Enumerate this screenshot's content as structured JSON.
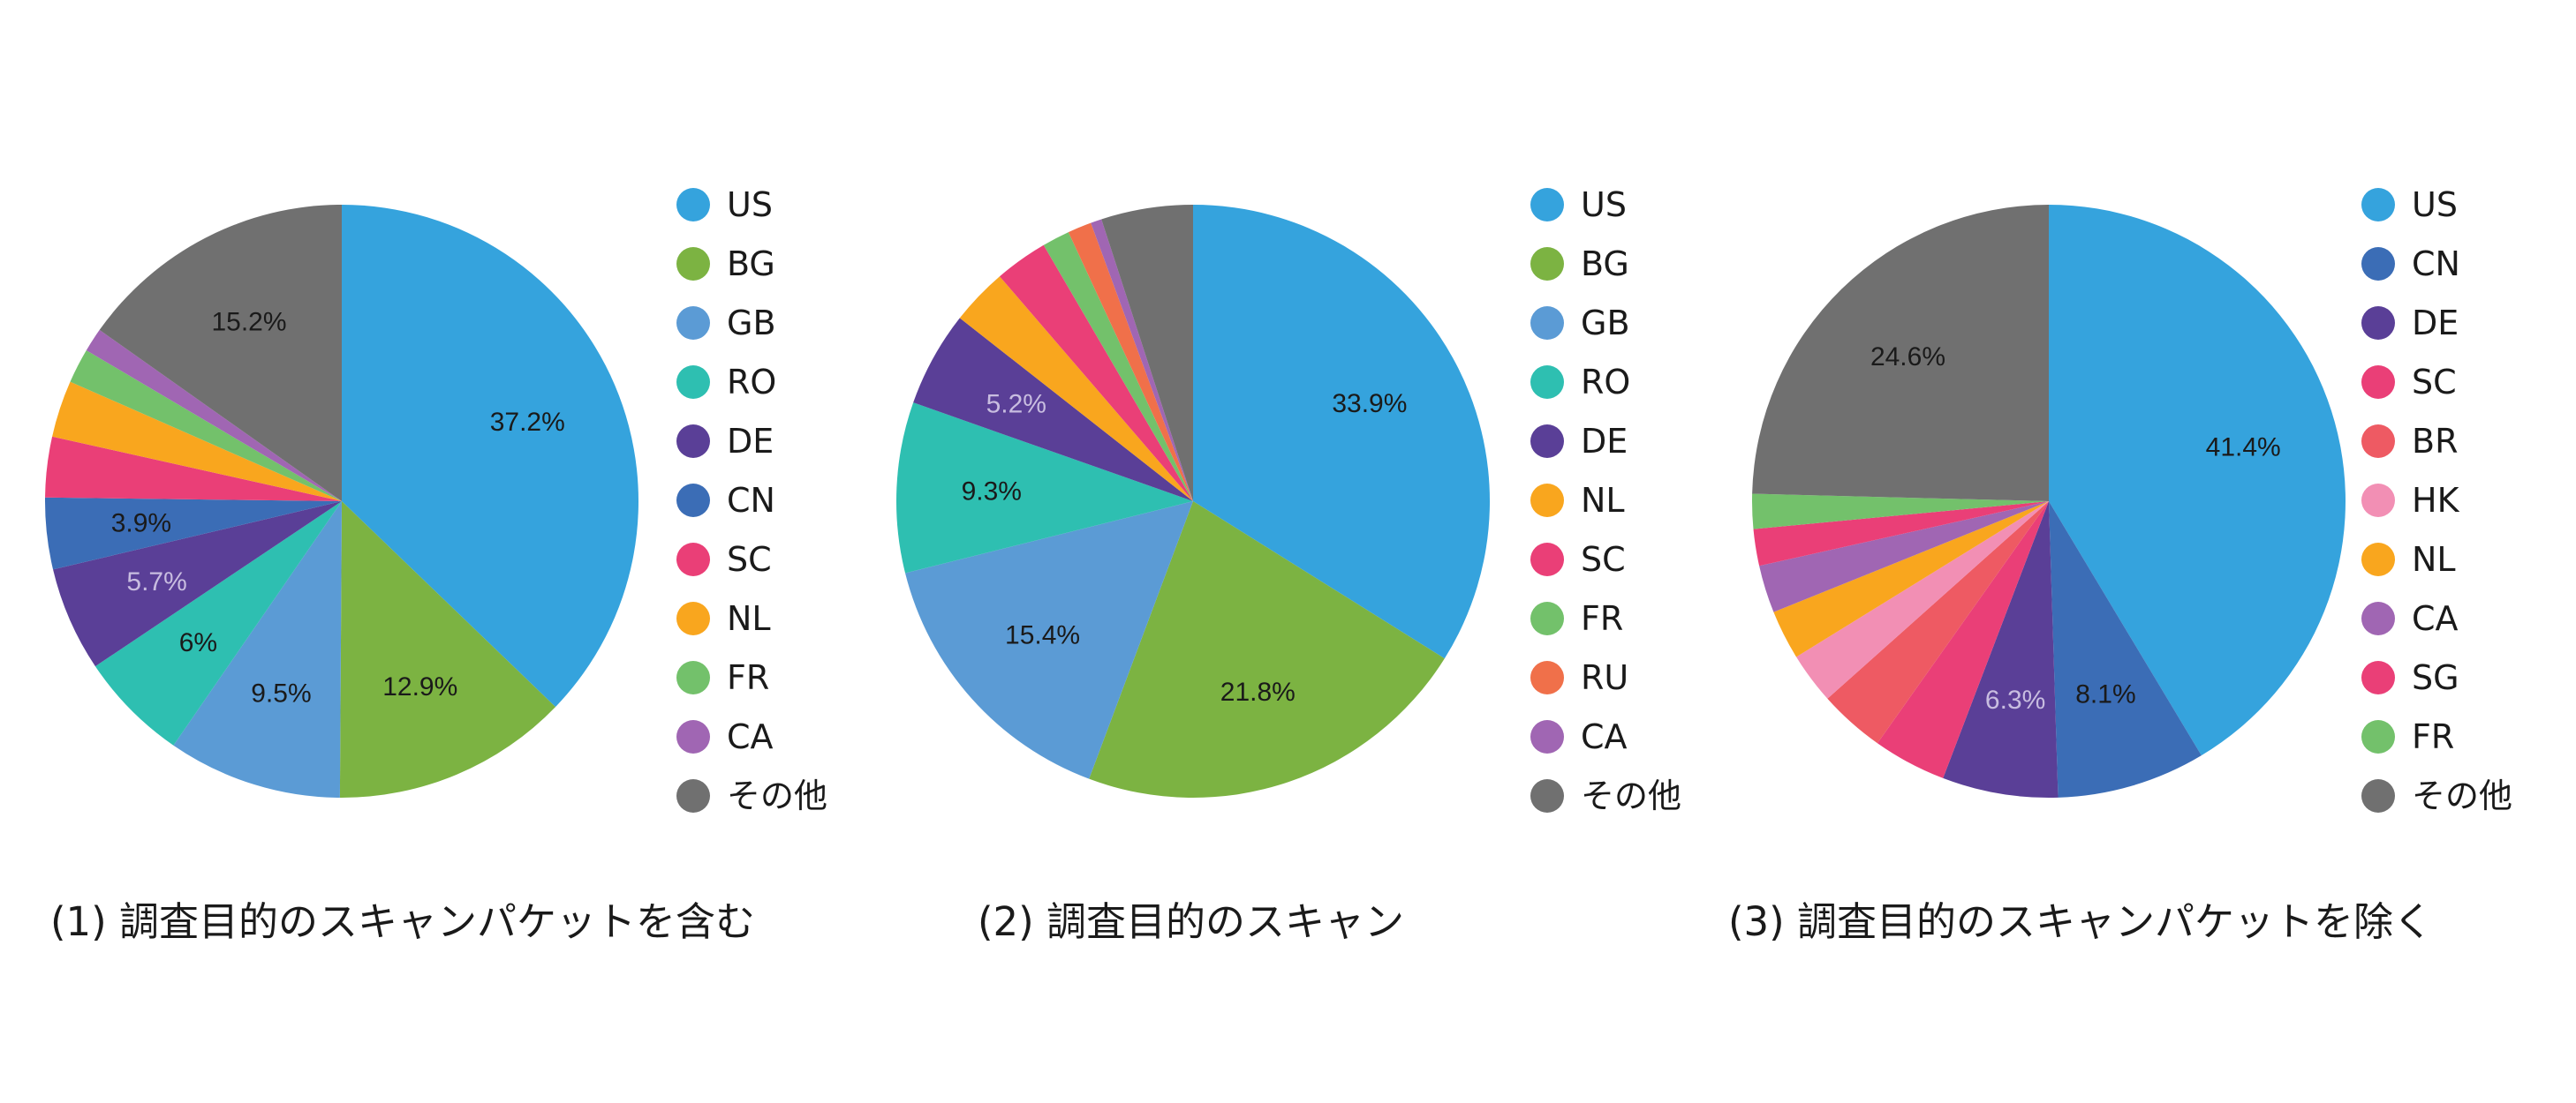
{
  "chart_data": [
    {
      "type": "pie",
      "caption": "(1) 調査目的のスキャンパケットを含む",
      "slices": [
        {
          "label": "US",
          "value": 37.2,
          "color": "#35a3dd",
          "data_label": "37.2%",
          "label_color": "#1a1a1a"
        },
        {
          "label": "BG",
          "value": 12.9,
          "color": "#7cb342",
          "data_label": "12.9%",
          "label_color": "#1a1a1a"
        },
        {
          "label": "GB",
          "value": 9.5,
          "color": "#5b9bd5",
          "data_label": "9.5%",
          "label_color": "#1a1a1a"
        },
        {
          "label": "RO",
          "value": 6.0,
          "color": "#2ebfb1",
          "data_label": "6%",
          "label_color": "#1a1a1a"
        },
        {
          "label": "DE",
          "value": 5.7,
          "color": "#5a3f97",
          "data_label": "5.7%",
          "label_color": "#c8bde0"
        },
        {
          "label": "CN",
          "value": 3.9,
          "color": "#3b6db6",
          "data_label": "3.9%",
          "label_color": "#1a1a1a"
        },
        {
          "label": "SC",
          "value": 3.3,
          "color": "#ea3f77",
          "data_label": "",
          "label_color": "#1a1a1a"
        },
        {
          "label": "NL",
          "value": 3.1,
          "color": "#f9a61e",
          "data_label": "",
          "label_color": "#1a1a1a"
        },
        {
          "label": "FR",
          "value": 1.9,
          "color": "#73c16b",
          "data_label": "",
          "label_color": "#1a1a1a"
        },
        {
          "label": "CA",
          "value": 1.3,
          "color": "#a066b3",
          "data_label": "",
          "label_color": "#1a1a1a"
        },
        {
          "label": "その他",
          "value": 15.2,
          "color": "#707070",
          "data_label": "15.2%",
          "label_color": "#1a1a1a"
        }
      ]
    },
    {
      "type": "pie",
      "caption": "(2) 調査目的のスキャン",
      "slices": [
        {
          "label": "US",
          "value": 33.9,
          "color": "#35a3dd",
          "data_label": "33.9%",
          "label_color": "#1a1a1a"
        },
        {
          "label": "BG",
          "value": 21.8,
          "color": "#7cb342",
          "data_label": "21.8%",
          "label_color": "#1a1a1a"
        },
        {
          "label": "GB",
          "value": 15.4,
          "color": "#5b9bd5",
          "data_label": "15.4%",
          "label_color": "#1a1a1a"
        },
        {
          "label": "RO",
          "value": 9.3,
          "color": "#2ebfb1",
          "data_label": "9.3%",
          "label_color": "#1a1a1a"
        },
        {
          "label": "DE",
          "value": 5.2,
          "color": "#5a3f97",
          "data_label": "5.2%",
          "label_color": "#c8bde0"
        },
        {
          "label": "NL",
          "value": 3.1,
          "color": "#f9a61e",
          "data_label": "",
          "label_color": "#1a1a1a"
        },
        {
          "label": "SC",
          "value": 2.9,
          "color": "#ea3f77",
          "data_label": "",
          "label_color": "#1a1a1a"
        },
        {
          "label": "FR",
          "value": 1.5,
          "color": "#73c16b",
          "data_label": "",
          "label_color": "#1a1a1a"
        },
        {
          "label": "RU",
          "value": 1.3,
          "color": "#f0704a",
          "data_label": "",
          "label_color": "#1a1a1a"
        },
        {
          "label": "CA",
          "value": 0.6,
          "color": "#a066b3",
          "data_label": "",
          "label_color": "#1a1a1a"
        },
        {
          "label": "その他",
          "value": 5.0,
          "color": "#707070",
          "data_label": "",
          "label_color": "#1a1a1a"
        }
      ]
    },
    {
      "type": "pie",
      "caption": "(3) 調査目的のスキャンパケットを除く",
      "slices": [
        {
          "label": "US",
          "value": 41.4,
          "color": "#35a3dd",
          "data_label": "41.4%",
          "label_color": "#1a1a1a"
        },
        {
          "label": "CN",
          "value": 8.1,
          "color": "#3b6db6",
          "data_label": "8.1%",
          "label_color": "#1a1a1a"
        },
        {
          "label": "DE",
          "value": 6.3,
          "color": "#5a3f97",
          "data_label": "6.3%",
          "label_color": "#c8bde0"
        },
        {
          "label": "SC",
          "value": 4.0,
          "color": "#ea3f77",
          "data_label": "",
          "label_color": "#1a1a1a"
        },
        {
          "label": "BR",
          "value": 3.6,
          "color": "#ee5a63",
          "data_label": "",
          "label_color": "#1a1a1a"
        },
        {
          "label": "HK",
          "value": 2.8,
          "color": "#f28fb4",
          "data_label": "",
          "label_color": "#1a1a1a"
        },
        {
          "label": "NL",
          "value": 2.7,
          "color": "#f9a61e",
          "data_label": "",
          "label_color": "#1a1a1a"
        },
        {
          "label": "CA",
          "value": 2.6,
          "color": "#a066b3",
          "data_label": "",
          "label_color": "#1a1a1a"
        },
        {
          "label": "SG",
          "value": 2.0,
          "color": "#ea3f77",
          "data_label": "",
          "label_color": "#1a1a1a"
        },
        {
          "label": "FR",
          "value": 1.9,
          "color": "#73c16b",
          "data_label": "",
          "label_color": "#1a1a1a"
        },
        {
          "label": "その他",
          "value": 24.6,
          "color": "#707070",
          "data_label": "24.6%",
          "label_color": "#1a1a1a"
        }
      ]
    }
  ]
}
